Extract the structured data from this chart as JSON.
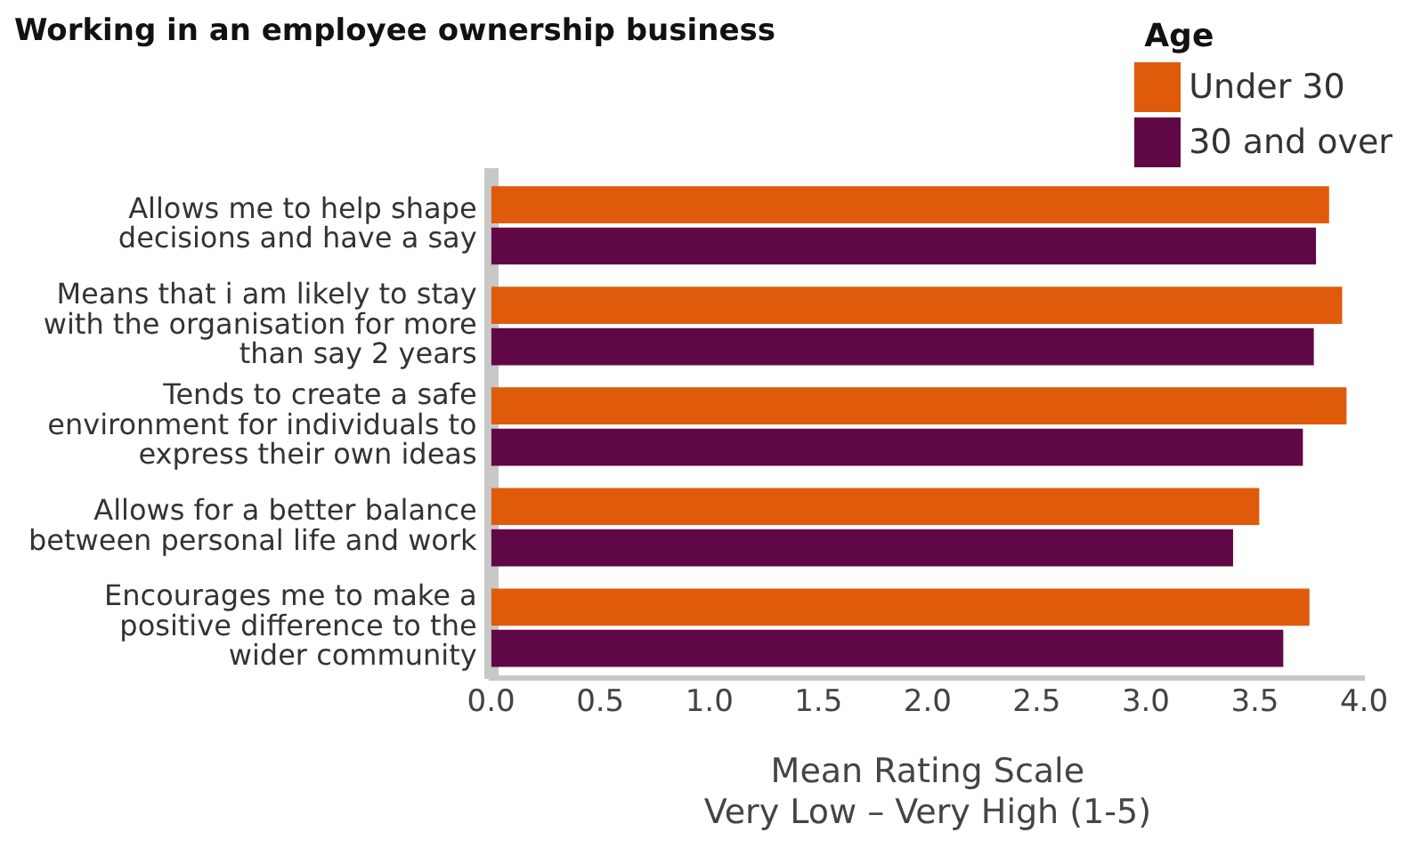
{
  "chart_data": {
    "type": "bar",
    "orientation": "horizontal",
    "title": "Working in an employee ownership business",
    "xlabel": "Mean Rating Scale\nVery Low – Very High (1-5)",
    "legend_title": "Age",
    "legend": "top right",
    "grid": false,
    "categories": [
      "Allows me to help shape decisions and have a say",
      "Means that i am likely to stay with the organisation for more than say 2 years",
      "Tends to create a safe environment for individuals to express their own ideas",
      "Allows for a better balance between personal life and work",
      "Encourages me to make a positive difference to the wider community"
    ],
    "xlim": [
      0,
      4
    ],
    "xticks": [
      {
        "value": 0,
        "label": "0.0"
      },
      {
        "value": 0.5,
        "label": "0.5"
      },
      {
        "value": 1,
        "label": "1.0"
      },
      {
        "value": 1.5,
        "label": "1.5"
      },
      {
        "value": 2,
        "label": "2.0"
      },
      {
        "value": 2.5,
        "label": "2.5"
      },
      {
        "value": 3,
        "label": "3.0"
      },
      {
        "value": 3.5,
        "label": "3.5"
      },
      {
        "value": 4,
        "label": "4.0"
      }
    ],
    "series": [
      {
        "name": "Under 30",
        "color": "#e05a0c",
        "values": [
          3.84,
          3.9,
          3.92,
          3.52,
          3.75
        ]
      },
      {
        "name": "30 and over",
        "color": "#600845",
        "values": [
          3.78,
          3.77,
          3.72,
          3.4,
          3.63
        ]
      }
    ]
  }
}
